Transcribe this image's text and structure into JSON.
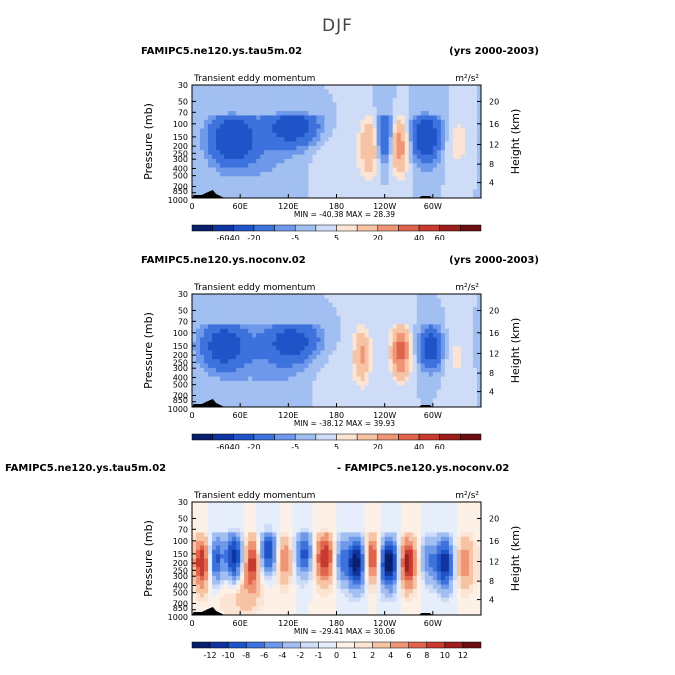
{
  "figure_title": "DJF",
  "chart_data": [
    {
      "type": "heatmap",
      "case": "FAMIPC5.ne120.ys.tau5m.02",
      "years": "(yrs 2000-2003)",
      "title": "Transient eddy momentum",
      "units": "m²/s²",
      "ylabel": "Pressure (mb)",
      "ylabel2": "Height (km)",
      "x_ticks": [
        "0",
        "60E",
        "120E",
        "180",
        "120W",
        "60W"
      ],
      "y_ticks": [
        "30",
        "50",
        "70",
        "100",
        "150",
        "200",
        "250",
        "300",
        "400",
        "500",
        "700",
        "850",
        "1000"
      ],
      "height_ticks": [
        "20",
        "16",
        "12",
        "8",
        "4"
      ],
      "stats": "MIN = -40.38   MAX = 28.39",
      "colorbar_labels": [
        "-60",
        "-40",
        "-20",
        "-5",
        "5",
        "20",
        "40",
        "60"
      ],
      "blobs": [
        {
          "lon": 50,
          "p": 160,
          "v": -35,
          "sx": 20,
          "sy": 0.55
        },
        {
          "lon": 125,
          "p": 110,
          "v": -30,
          "sx": 23,
          "sy": 0.4
        },
        {
          "lon": 100,
          "p": 300,
          "v": -5,
          "sx": 40,
          "sy": 0.8
        },
        {
          "lon": 180,
          "p": 300,
          "v": 5,
          "sx": 30,
          "sy": 0.8
        },
        {
          "lon": 222,
          "p": 200,
          "v": 20,
          "sx": 8,
          "sy": 0.6
        },
        {
          "lon": 240,
          "p": 150,
          "v": -25,
          "sx": 8,
          "sy": 0.6
        },
        {
          "lon": 258,
          "p": 200,
          "v": 28,
          "sx": 8,
          "sy": 0.6
        },
        {
          "lon": 292,
          "p": 150,
          "v": -33,
          "sx": 13,
          "sy": 0.55
        },
        {
          "lon": 330,
          "p": 180,
          "v": 8,
          "sx": 12,
          "sy": 0.6
        }
      ]
    },
    {
      "type": "heatmap",
      "case": "FAMIPC5.ne120.ys.noconv.02",
      "years": "(yrs 2000-2003)",
      "title": "Transient eddy momentum",
      "units": "m²/s²",
      "ylabel": "Pressure (mb)",
      "ylabel2": "Height (km)",
      "x_ticks": [
        "0",
        "60E",
        "120E",
        "180",
        "120W",
        "60W"
      ],
      "y_ticks": [
        "30",
        "50",
        "70",
        "100",
        "150",
        "200",
        "250",
        "300",
        "400",
        "500",
        "700",
        "850",
        "1000"
      ],
      "height_ticks": [
        "20",
        "16",
        "12",
        "8",
        "4"
      ],
      "stats": "MIN = -38.12   MAX = 39.93",
      "colorbar_labels": [
        "-60",
        "-40",
        "-20",
        "-5",
        "5",
        "20",
        "40",
        "60"
      ],
      "blobs": [
        {
          "lon": 40,
          "p": 150,
          "v": -30,
          "sx": 20,
          "sy": 0.5
        },
        {
          "lon": 125,
          "p": 130,
          "v": -25,
          "sx": 25,
          "sy": 0.45
        },
        {
          "lon": 110,
          "p": 300,
          "v": -6,
          "sx": 45,
          "sy": 0.8
        },
        {
          "lon": 170,
          "p": 300,
          "v": 5,
          "sx": 30,
          "sy": 0.8
        },
        {
          "lon": 212,
          "p": 200,
          "v": 22,
          "sx": 7,
          "sy": 0.55
        },
        {
          "lon": 260,
          "p": 180,
          "v": 36,
          "sx": 8,
          "sy": 0.55
        },
        {
          "lon": 298,
          "p": 160,
          "v": -30,
          "sx": 10,
          "sy": 0.45
        },
        {
          "lon": 330,
          "p": 200,
          "v": 6,
          "sx": 12,
          "sy": 0.7
        }
      ]
    },
    {
      "type": "heatmap",
      "case": "FAMIPC5.ne120.ys.tau5m.02",
      "years": "- FAMIPC5.ne120.ys.noconv.02",
      "title": "Transient eddy momentum",
      "units": "m²/s²",
      "ylabel": "Pressure (mb)",
      "ylabel2": "Height (km)",
      "x_ticks": [
        "0",
        "60E",
        "120E",
        "180",
        "120W",
        "60W"
      ],
      "y_ticks": [
        "30",
        "50",
        "70",
        "100",
        "150",
        "200",
        "250",
        "300",
        "400",
        "500",
        "700",
        "850",
        "1000"
      ],
      "height_ticks": [
        "20",
        "16",
        "12",
        "8",
        "4"
      ],
      "stats": "MIN = -29.41   MAX = 30.06",
      "colorbar_labels": [
        "-12",
        "-10",
        "-8",
        "-6",
        "-4",
        "-2",
        "-1",
        "0",
        "1",
        "2",
        "4",
        "6",
        "8",
        "10",
        "12"
      ],
      "blobs": [
        {
          "lon": 12,
          "p": 200,
          "v": 10,
          "sx": 7,
          "sy": 0.55
        },
        {
          "lon": 30,
          "p": 180,
          "v": -9,
          "sx": 6,
          "sy": 0.55
        },
        {
          "lon": 52,
          "p": 170,
          "v": -12,
          "sx": 8,
          "sy": 0.55
        },
        {
          "lon": 75,
          "p": 190,
          "v": 9,
          "sx": 7,
          "sy": 0.55
        },
        {
          "lon": 95,
          "p": 140,
          "v": -10,
          "sx": 8,
          "sy": 0.5
        },
        {
          "lon": 115,
          "p": 180,
          "v": 6,
          "sx": 7,
          "sy": 0.55
        },
        {
          "lon": 140,
          "p": 150,
          "v": -9,
          "sx": 8,
          "sy": 0.5
        },
        {
          "lon": 165,
          "p": 170,
          "v": 10,
          "sx": 9,
          "sy": 0.55
        },
        {
          "lon": 185,
          "p": 180,
          "v": -6,
          "sx": 6,
          "sy": 0.5
        },
        {
          "lon": 205,
          "p": 200,
          "v": -14,
          "sx": 9,
          "sy": 0.55
        },
        {
          "lon": 225,
          "p": 180,
          "v": 11,
          "sx": 8,
          "sy": 0.55
        },
        {
          "lon": 245,
          "p": 200,
          "v": -15,
          "sx": 10,
          "sy": 0.55
        },
        {
          "lon": 268,
          "p": 200,
          "v": 12,
          "sx": 8,
          "sy": 0.55
        },
        {
          "lon": 295,
          "p": 180,
          "v": -6,
          "sx": 7,
          "sy": 0.5
        },
        {
          "lon": 315,
          "p": 200,
          "v": -12,
          "sx": 8,
          "sy": 0.55
        },
        {
          "lon": 340,
          "p": 200,
          "v": 6,
          "sx": 8,
          "sy": 0.55
        },
        {
          "lon": 60,
          "p": 500,
          "v": 3,
          "sx": 20,
          "sy": 0.6
        }
      ]
    }
  ]
}
